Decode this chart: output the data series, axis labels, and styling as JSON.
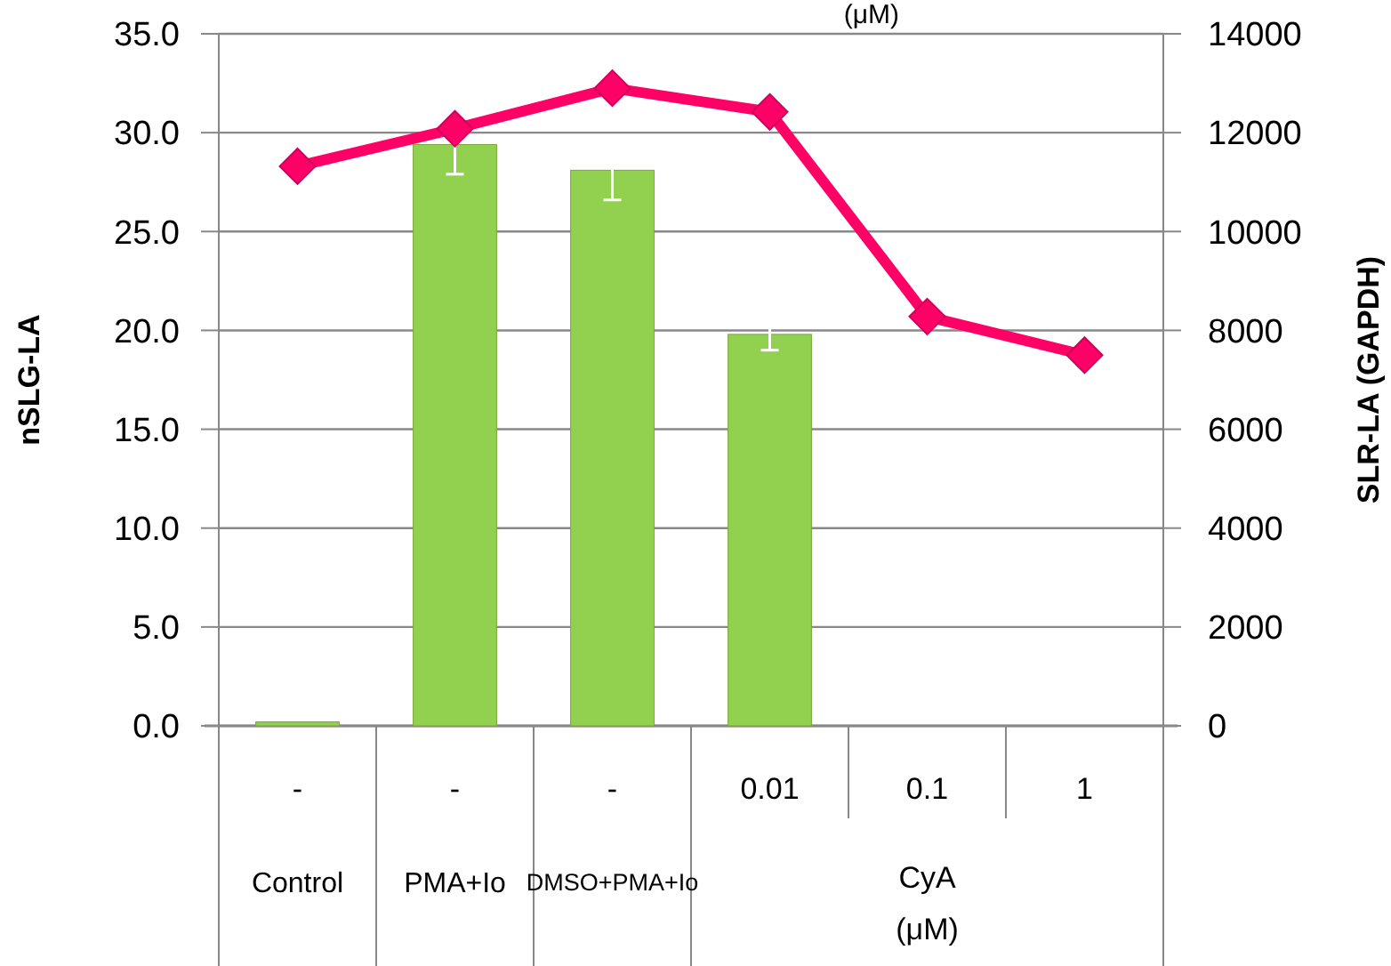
{
  "chart_data": {
    "type": "bar",
    "ylabel": "nSLG-LA",
    "y2label": "SLR-LA (GAPDH)",
    "categories": [
      "-",
      "-",
      "-",
      "0.01",
      "0.1",
      "1"
    ],
    "series": [
      {
        "color": "#92d050",
        "values": [
          0.2,
          29.4,
          28.1,
          19.8,
          0,
          0
        ],
        "errors": [
          null,
          1.5,
          1.5,
          0.8,
          null,
          null
        ]
      },
      {
        "type": "line",
        "axis": "y2",
        "color": "#ff0066",
        "marker": "diamond",
        "line_style": "solid",
        "values": [
          11320,
          12080,
          12900,
          12420,
          8280,
          7500
        ]
      }
    ],
    "ylim": [
      0,
      35
    ],
    "yticks": [
      {
        "value": 0,
        "label": "0.0"
      },
      {
        "value": 5,
        "label": "5.0"
      },
      {
        "value": 10,
        "label": "10.0"
      },
      {
        "value": 15,
        "label": "15.0"
      },
      {
        "value": 20,
        "label": "20.0"
      },
      {
        "value": 25,
        "label": "25.0"
      },
      {
        "value": 30,
        "label": "30.0"
      },
      {
        "value": 35,
        "label": "35.0"
      }
    ],
    "y2lim": [
      0,
      14000
    ],
    "y2ticks": [
      0,
      2000,
      4000,
      6000,
      8000,
      10000,
      12000,
      14000
    ],
    "grid": "y",
    "annotations": [
      "Control",
      "PMA+Io",
      "DMSO+PMA+Io",
      "CyA (μM)",
      "(μM)"
    ]
  }
}
